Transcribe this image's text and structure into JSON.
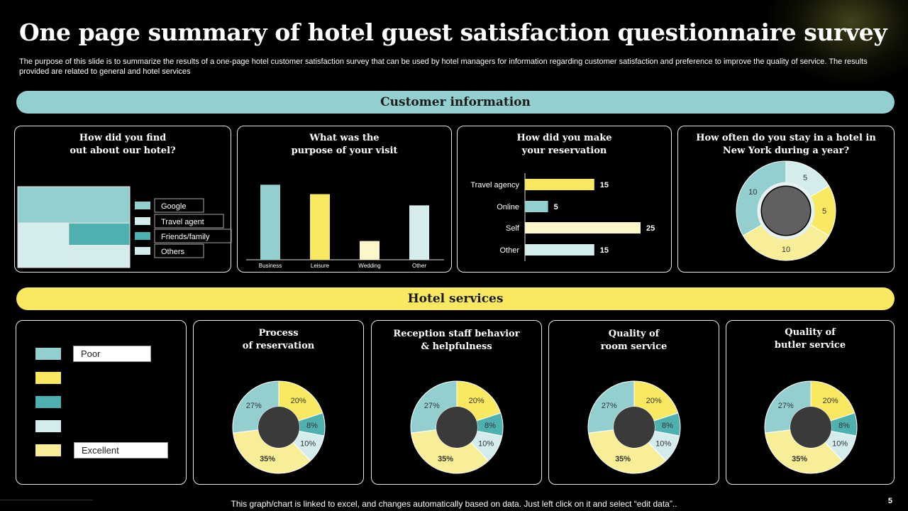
{
  "header": {
    "title": "One page summary of hotel guest satisfaction questionnaire survey",
    "subtitle": "The purpose of this slide is to summarize the results of a one-page hotel customer satisfaction survey that can be used by hotel managers for information regarding customer satisfaction and preference to improve the quality of service. The results provided are related to general and hotel services"
  },
  "sections": {
    "customer_info": "Customer information",
    "hotel_services": "Hotel services"
  },
  "colors": {
    "teal_light": "#94cfcf",
    "teal_dark": "#4fb0b0",
    "yellow": "#f8e960",
    "cream": "#fcf6c8",
    "ice": "#d5ecec",
    "pale_yellow": "#f9ee98",
    "hole": "#555555"
  },
  "cards": {
    "find": {
      "title_line1": "How did you find",
      "title_line2": "out about our hotel?"
    },
    "purpose": {
      "title_line1": "What was the",
      "title_line2": "purpose of your visit"
    },
    "reservation": {
      "title_line1": "How did you make",
      "title_line2": "your reservation"
    },
    "frequency": {
      "title_line1": "How often do you stay in a hotel in",
      "title_line2": "New York during a year?"
    },
    "process": {
      "title_line1": "Process",
      "title_line2": "of reservation"
    },
    "reception": {
      "title_line1": "Reception staff behavior",
      "title_line2": "& helpfulness"
    },
    "room": {
      "title_line1": "Quality of",
      "title_line2": "room service"
    },
    "butler": {
      "title_line1": "Quality of",
      "title_line2": "butler service"
    }
  },
  "rating_legend": {
    "poor": "Poor",
    "excellent": "Excellent"
  },
  "footer": {
    "note": "This graph/chart is linked to excel,  and changes automatically based on data. Just left click on it and select “edit data”..",
    "page": "5"
  },
  "chart_data": [
    {
      "id": "find",
      "type": "treemap",
      "title": "How did you find out about our hotel?",
      "categories": [
        "Google",
        "Travel agent",
        "Friends/family",
        "Others"
      ],
      "values": [
        45,
        25,
        15,
        15
      ]
    },
    {
      "id": "purpose",
      "type": "bar",
      "title": "What was the purpose of your visit",
      "categories": [
        "Business",
        "Leisure",
        "Wedding",
        "Other"
      ],
      "values": [
        40,
        35,
        10,
        29
      ],
      "ylim": [
        0,
        42
      ]
    },
    {
      "id": "reservation",
      "type": "bar",
      "orientation": "horizontal",
      "title": "How did you make your reservation",
      "categories": [
        "Travel agency",
        "Online",
        "Self",
        "Other"
      ],
      "values": [
        15,
        5,
        25,
        15
      ],
      "xlim": [
        0,
        25
      ]
    },
    {
      "id": "frequency",
      "type": "pie",
      "donut": true,
      "title": "How often do you stay in a hotel in New York during a year?",
      "values": [
        5,
        5,
        10,
        10
      ],
      "labels": [
        "5",
        "5",
        "10",
        "10"
      ]
    },
    {
      "id": "process",
      "type": "pie",
      "donut": true,
      "title": "Process of reservation",
      "values": [
        20,
        8,
        10,
        35,
        27
      ],
      "labels": [
        "20%",
        "8%",
        "10%",
        "35%",
        "27%"
      ]
    },
    {
      "id": "reception",
      "type": "pie",
      "donut": true,
      "title": "Reception staff behavior & helpfulness",
      "values": [
        20,
        8,
        10,
        35,
        27
      ],
      "labels": [
        "20%",
        "8%",
        "10%",
        "35%",
        "27%"
      ]
    },
    {
      "id": "room",
      "type": "pie",
      "donut": true,
      "title": "Quality of room service",
      "values": [
        20,
        8,
        10,
        35,
        27
      ],
      "labels": [
        "20%",
        "8%",
        "10%",
        "35%",
        "27%"
      ]
    },
    {
      "id": "butler",
      "type": "pie",
      "donut": true,
      "title": "Quality of butler service",
      "values": [
        20,
        8,
        10,
        35,
        27
      ],
      "labels": [
        "20%",
        "8%",
        "10%",
        "35%",
        "27%"
      ]
    }
  ]
}
